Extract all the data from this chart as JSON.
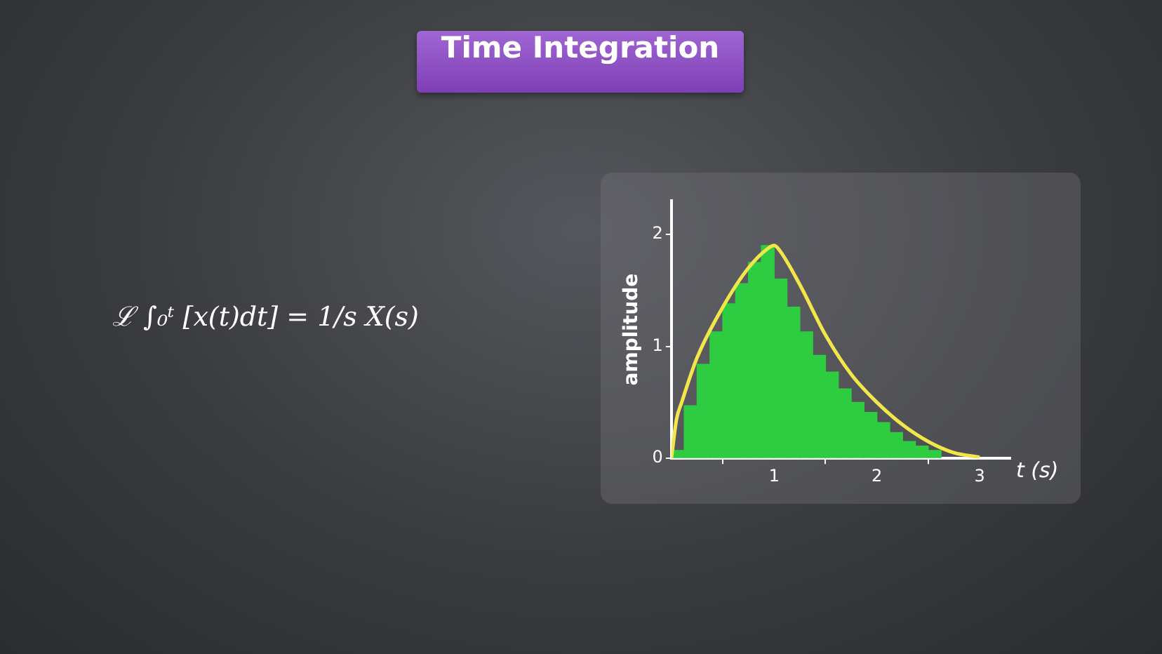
{
  "chart_data": {
    "type": "histogram",
    "title": "Time Integration",
    "xlabel": "t (s)",
    "ylabel": "amplitude",
    "annotations": [
      "ℒ ∫₀ᵗ [x(t)dt] = 1/s X(s)"
    ],
    "xlim": [
      0,
      3.3
    ],
    "xticks": [
      1,
      2,
      3
    ],
    "ylim": [
      0,
      2.3
    ],
    "yticks": [
      0,
      1,
      2
    ],
    "grid": false,
    "legend": false,
    "series": [
      {
        "type": "histogram",
        "color": "#2ecc40",
        "bins": [
          0,
          0.125,
          0.25,
          0.375,
          0.5,
          0.625,
          0.75,
          0.875,
          1,
          1.125,
          1.25,
          1.375,
          1.5,
          1.625,
          1.75,
          1.875,
          2,
          2.125,
          2.25,
          2.375,
          2.5,
          2.625
        ],
        "values": [
          0.07,
          0.47,
          0.84,
          1.13,
          1.38,
          1.56,
          1.75,
          1.9,
          1.6,
          1.35,
          1.13,
          0.92,
          0.77,
          0.62,
          0.5,
          0.41,
          0.32,
          0.23,
          0.15,
          0.11,
          0.07
        ]
      },
      {
        "type": "line",
        "color": "#f2e64a",
        "x": [
          0,
          0.05,
          0.1,
          0.25,
          0.5,
          0.75,
          0.95,
          1,
          1.05,
          1.25,
          1.5,
          1.75,
          2,
          2.25,
          2.5,
          2.75,
          3
        ],
        "values": [
          0,
          0.35,
          0.5,
          0.9,
          1.35,
          1.7,
          1.88,
          1.9,
          1.86,
          1.55,
          1.1,
          0.75,
          0.5,
          0.3,
          0.15,
          0.05,
          0.01
        ]
      }
    ]
  }
}
